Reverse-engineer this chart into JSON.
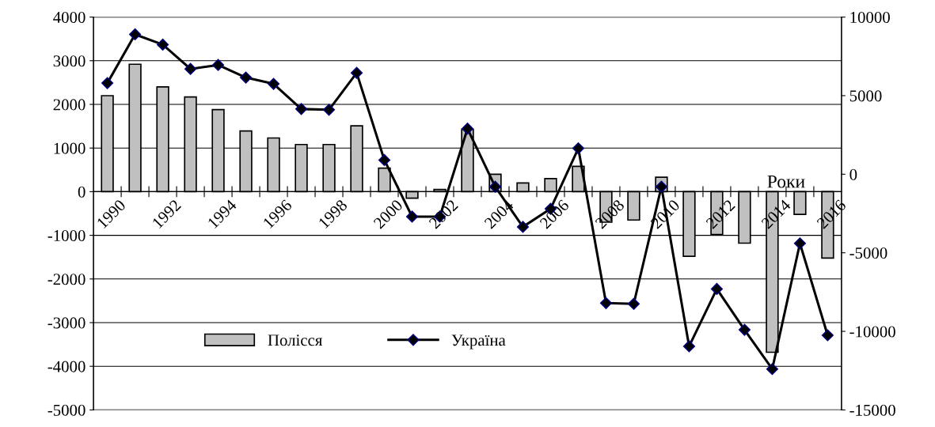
{
  "chart_data": {
    "type": "bar",
    "categories": [
      "1990",
      null,
      "1992",
      null,
      "1994",
      null,
      "1996",
      null,
      "1998",
      null,
      "2000",
      null,
      "2002",
      null,
      "2004",
      null,
      "2006",
      null,
      "2008",
      null,
      "2010",
      null,
      "2012",
      null,
      "2014",
      null,
      "2016"
    ],
    "series": [
      {
        "name": "Полісся",
        "type": "bar",
        "color": "#c0c0c0",
        "values": [
          2200,
          2920,
          2400,
          2170,
          1880,
          1390,
          1230,
          1080,
          1080,
          1510,
          540,
          -150,
          50,
          1430,
          400,
          200,
          300,
          580,
          -700,
          -650,
          330,
          -1480,
          -980,
          -1180,
          -3680,
          -520,
          -1520
        ]
      },
      {
        "name": "Україна",
        "type": "line",
        "axis": "y2",
        "color": "#000000",
        "marker": "diamond",
        "values": [
          5800,
          8900,
          8250,
          6700,
          6950,
          6150,
          5750,
          4150,
          4100,
          6450,
          900,
          -2700,
          -2700,
          2900,
          -800,
          -3350,
          -2200,
          1650,
          -8200,
          -8250,
          -800,
          -10950,
          -7300,
          -9900,
          -12400,
          -4400,
          -10250
        ]
      }
    ],
    "ylim": [
      -5000,
      4000
    ],
    "yticks": [
      -5000,
      -4000,
      -3000,
      -2000,
      -1000,
      0,
      1000,
      2000,
      3000,
      4000
    ],
    "y2lim": [
      -15000,
      10000
    ],
    "y2ticks": [
      -15000,
      -10000,
      -5000,
      0,
      5000,
      10000
    ],
    "grid": "y",
    "legend": "bottom",
    "annotations": [
      {
        "text": "Роки",
        "x": "2014",
        "y": 0
      }
    ]
  }
}
